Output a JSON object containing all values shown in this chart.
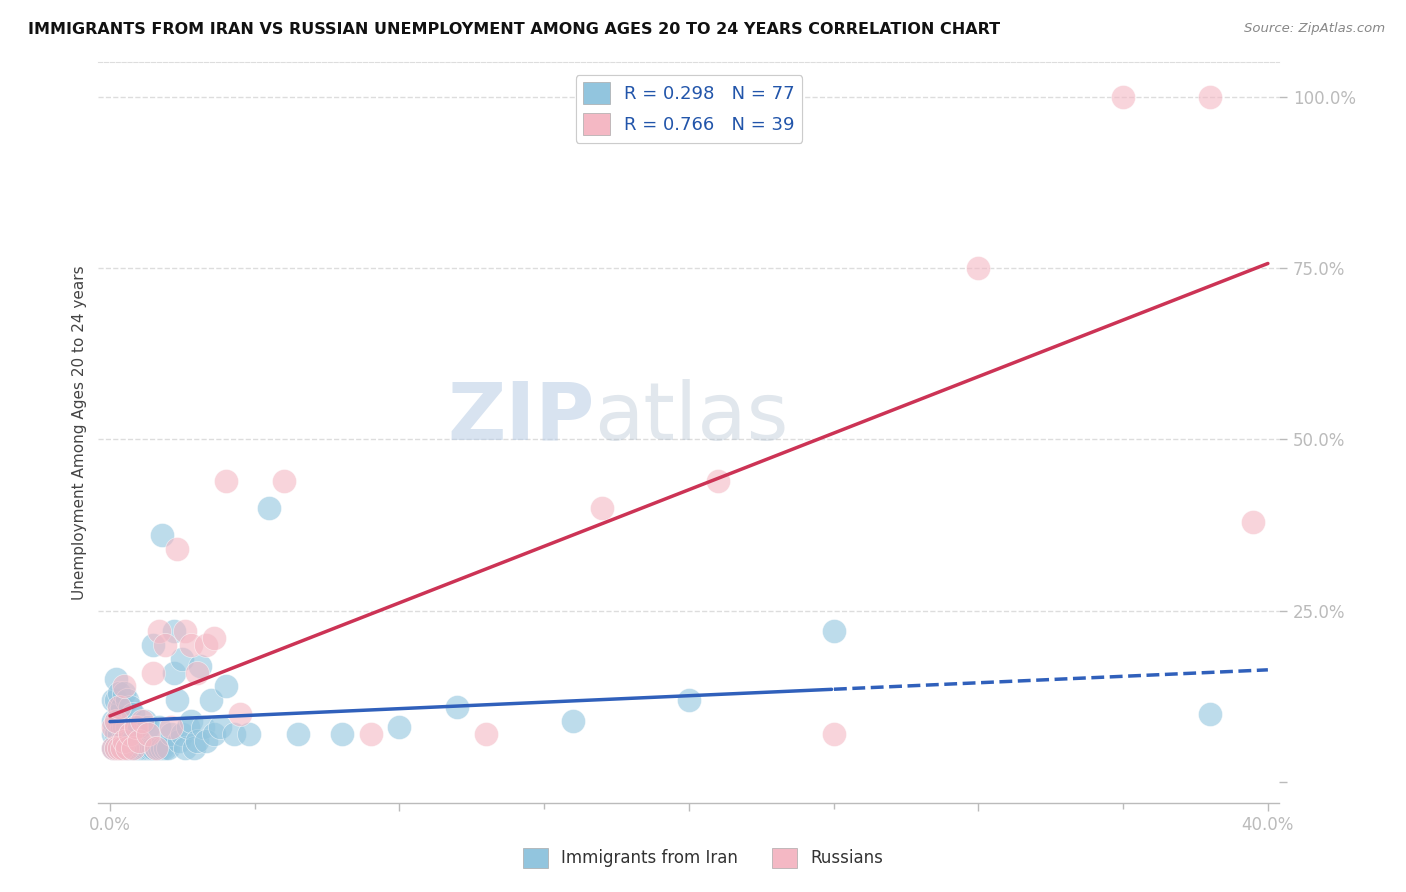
{
  "title": "IMMIGRANTS FROM IRAN VS RUSSIAN UNEMPLOYMENT AMONG AGES 20 TO 24 YEARS CORRELATION CHART",
  "source": "Source: ZipAtlas.com",
  "ylabel": "Unemployment Among Ages 20 to 24 years",
  "xlim": [
    0.0,
    0.4
  ],
  "ylim": [
    0.0,
    1.05
  ],
  "iran_color": "#92C5DE",
  "russia_color": "#F4B8C4",
  "iran_line_color": "#3060BB",
  "russia_line_color": "#CC3355",
  "iran_R": 0.298,
  "iran_N": 77,
  "russia_R": 0.766,
  "russia_N": 39,
  "legend_label_iran": "Immigrants from Iran",
  "legend_label_russia": "Russians",
  "watermark_zip": "ZIP",
  "watermark_atlas": "atlas",
  "iran_x": [
    0.001,
    0.001,
    0.001,
    0.001,
    0.002,
    0.002,
    0.002,
    0.002,
    0.002,
    0.003,
    0.003,
    0.003,
    0.003,
    0.004,
    0.004,
    0.004,
    0.005,
    0.005,
    0.005,
    0.006,
    0.006,
    0.006,
    0.007,
    0.007,
    0.007,
    0.008,
    0.008,
    0.008,
    0.009,
    0.009,
    0.01,
    0.01,
    0.011,
    0.012,
    0.012,
    0.013,
    0.013,
    0.014,
    0.015,
    0.015,
    0.016,
    0.017,
    0.017,
    0.018,
    0.018,
    0.019,
    0.02,
    0.021,
    0.022,
    0.022,
    0.023,
    0.024,
    0.025,
    0.025,
    0.026,
    0.027,
    0.028,
    0.029,
    0.03,
    0.031,
    0.032,
    0.033,
    0.035,
    0.036,
    0.038,
    0.04,
    0.043,
    0.048,
    0.055,
    0.065,
    0.08,
    0.1,
    0.12,
    0.16,
    0.2,
    0.25,
    0.38
  ],
  "iran_y": [
    0.05,
    0.07,
    0.09,
    0.12,
    0.05,
    0.07,
    0.09,
    0.12,
    0.15,
    0.05,
    0.07,
    0.1,
    0.13,
    0.06,
    0.08,
    0.11,
    0.05,
    0.08,
    0.13,
    0.05,
    0.08,
    0.12,
    0.05,
    0.07,
    0.11,
    0.05,
    0.07,
    0.1,
    0.05,
    0.08,
    0.05,
    0.08,
    0.05,
    0.05,
    0.09,
    0.05,
    0.08,
    0.05,
    0.05,
    0.2,
    0.05,
    0.05,
    0.08,
    0.05,
    0.36,
    0.05,
    0.05,
    0.07,
    0.16,
    0.22,
    0.12,
    0.06,
    0.07,
    0.18,
    0.05,
    0.08,
    0.09,
    0.05,
    0.06,
    0.17,
    0.08,
    0.06,
    0.12,
    0.07,
    0.08,
    0.14,
    0.07,
    0.07,
    0.4,
    0.07,
    0.07,
    0.08,
    0.11,
    0.09,
    0.12,
    0.22,
    0.1
  ],
  "russia_x": [
    0.001,
    0.001,
    0.002,
    0.002,
    0.003,
    0.003,
    0.004,
    0.005,
    0.005,
    0.006,
    0.007,
    0.008,
    0.009,
    0.01,
    0.011,
    0.013,
    0.015,
    0.016,
    0.017,
    0.019,
    0.021,
    0.023,
    0.026,
    0.028,
    0.03,
    0.033,
    0.036,
    0.04,
    0.045,
    0.06,
    0.09,
    0.13,
    0.17,
    0.21,
    0.25,
    0.3,
    0.35,
    0.38,
    0.395
  ],
  "russia_y": [
    0.05,
    0.08,
    0.05,
    0.09,
    0.05,
    0.11,
    0.05,
    0.06,
    0.14,
    0.05,
    0.07,
    0.05,
    0.08,
    0.06,
    0.09,
    0.07,
    0.16,
    0.05,
    0.22,
    0.2,
    0.08,
    0.34,
    0.22,
    0.2,
    0.16,
    0.2,
    0.21,
    0.44,
    0.1,
    0.44,
    0.07,
    0.07,
    0.4,
    0.44,
    0.07,
    0.75,
    1.0,
    1.0,
    0.38
  ]
}
